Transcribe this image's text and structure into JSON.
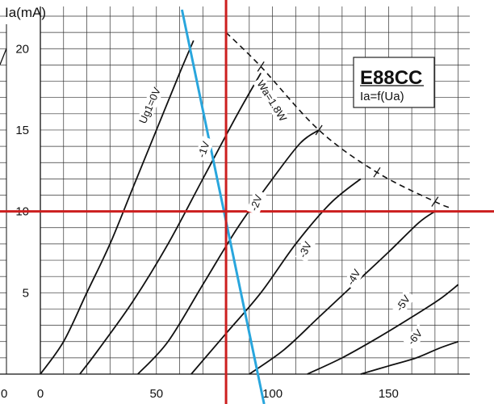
{
  "chart_data": {
    "type": "line",
    "title": "E88CC",
    "subtitle": "Ia=f(Ua)",
    "ylabel": "Ia(mA)",
    "xlabel": "",
    "xlim": [
      0,
      185
    ],
    "ylim": [
      0,
      22
    ],
    "x_ticks": [
      0,
      50,
      100,
      150
    ],
    "x_tick_labels": [
      "0",
      "50",
      "100",
      "150"
    ],
    "y_ticks": [
      5,
      10,
      15,
      20
    ],
    "y_tick_labels": [
      "5",
      "10",
      "15",
      "20"
    ],
    "grid": true,
    "series": [
      {
        "name": "Ug1=0V",
        "color": "#111111",
        "points": [
          [
            0,
            0
          ],
          [
            10,
            2
          ],
          [
            20,
            5
          ],
          [
            30,
            8
          ],
          [
            40,
            11.5
          ],
          [
            50,
            15
          ],
          [
            60,
            18.5
          ],
          [
            66,
            20.5
          ]
        ]
      },
      {
        "name": "-1V",
        "color": "#111111",
        "points": [
          [
            17,
            0
          ],
          [
            25,
            1.5
          ],
          [
            40,
            4.5
          ],
          [
            55,
            8
          ],
          [
            70,
            12
          ],
          [
            85,
            16
          ],
          [
            95,
            18.5
          ]
        ]
      },
      {
        "name": "-2V",
        "color": "#111111",
        "points": [
          [
            42,
            0
          ],
          [
            55,
            2
          ],
          [
            70,
            5.5
          ],
          [
            85,
            9
          ],
          [
            100,
            12
          ],
          [
            112,
            14.2
          ],
          [
            120,
            15
          ]
        ]
      },
      {
        "name": "-3V",
        "color": "#111111",
        "points": [
          [
            65,
            0
          ],
          [
            80,
            2.5
          ],
          [
            95,
            5
          ],
          [
            110,
            8
          ],
          [
            125,
            10.5
          ],
          [
            138,
            12
          ]
        ]
      },
      {
        "name": "-4V",
        "color": "#111111",
        "points": [
          [
            90,
            0
          ],
          [
            105,
            1.5
          ],
          [
            120,
            3.5
          ],
          [
            135,
            5.5
          ],
          [
            150,
            7.5
          ],
          [
            163,
            9.3
          ],
          [
            170,
            10
          ]
        ]
      },
      {
        "name": "-5V",
        "color": "#111111",
        "points": [
          [
            115,
            0
          ],
          [
            130,
            1
          ],
          [
            145,
            2.2
          ],
          [
            160,
            3.5
          ],
          [
            172,
            4.6
          ],
          [
            180,
            5.5
          ]
        ]
      },
      {
        "name": "-6V",
        "color": "#111111",
        "points": [
          [
            138,
            0
          ],
          [
            150,
            0.5
          ],
          [
            162,
            1
          ],
          [
            172,
            1.6
          ],
          [
            180,
            2
          ]
        ]
      }
    ],
    "dissipation_curve": {
      "name": "Wa=1.8W",
      "points": [
        [
          80,
          21
        ],
        [
          95,
          18.9
        ],
        [
          120,
          15
        ],
        [
          145,
          12.4
        ],
        [
          170,
          10.6
        ],
        [
          177,
          10.2
        ]
      ]
    },
    "load_line": {
      "color": "#29a6dd",
      "points": [
        [
          61,
          22
        ],
        [
          95,
          0
        ]
      ]
    },
    "operating_point": {
      "x": 80,
      "y": 10,
      "color": "#cc1f1f"
    },
    "labels": {
      "ug0": "Ug1=0V",
      "g1": "-1V",
      "g2": "-2V",
      "g3": "-3V",
      "g4": "-4V",
      "g5": "-5V",
      "g6": "-6V",
      "wa": "Wa=1.8W"
    }
  }
}
